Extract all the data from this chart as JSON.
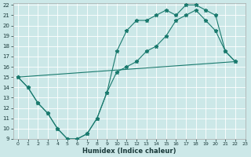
{
  "xlabel": "Humidex (Indice chaleur)",
  "xlim": [
    -0.5,
    23
  ],
  "ylim": [
    9,
    22.2
  ],
  "xticks": [
    0,
    1,
    2,
    3,
    4,
    5,
    6,
    7,
    8,
    9,
    10,
    11,
    12,
    13,
    14,
    15,
    16,
    17,
    18,
    19,
    20,
    21,
    22,
    23
  ],
  "yticks": [
    9,
    10,
    11,
    12,
    13,
    14,
    15,
    16,
    17,
    18,
    19,
    20,
    21,
    22
  ],
  "bg_color": "#cce8e8",
  "grid_color": "#ffffff",
  "line_color": "#1a7a6e",
  "curve1_x": [
    0,
    1,
    2,
    3,
    4,
    5,
    6,
    7,
    8,
    9,
    10,
    11,
    12,
    13,
    14,
    15,
    16,
    17,
    18,
    19,
    20,
    21,
    22
  ],
  "curve1_y": [
    15,
    14,
    12.5,
    11.5,
    10,
    9,
    9,
    9.5,
    11,
    13.5,
    17.5,
    19.5,
    20.5,
    20.5,
    21,
    21.5,
    21,
    22,
    22,
    21.5,
    21,
    17.5,
    16.5
  ],
  "curve2_x": [
    0,
    1,
    2,
    3,
    4,
    5,
    6,
    7,
    8,
    9,
    10,
    11,
    12,
    13,
    14,
    15,
    16,
    17,
    18,
    19,
    20,
    21,
    22
  ],
  "curve2_y": [
    15,
    14,
    12.5,
    11.5,
    10,
    9,
    9,
    9.5,
    11,
    13.5,
    15.5,
    16,
    16.5,
    17.5,
    18,
    19,
    20.5,
    21,
    21.5,
    20.5,
    19.5,
    17.5,
    16.5
  ],
  "line3_x": [
    0,
    22
  ],
  "line3_y": [
    15,
    16.5
  ],
  "figsize": [
    3.2,
    2.0
  ],
  "dpi": 100
}
